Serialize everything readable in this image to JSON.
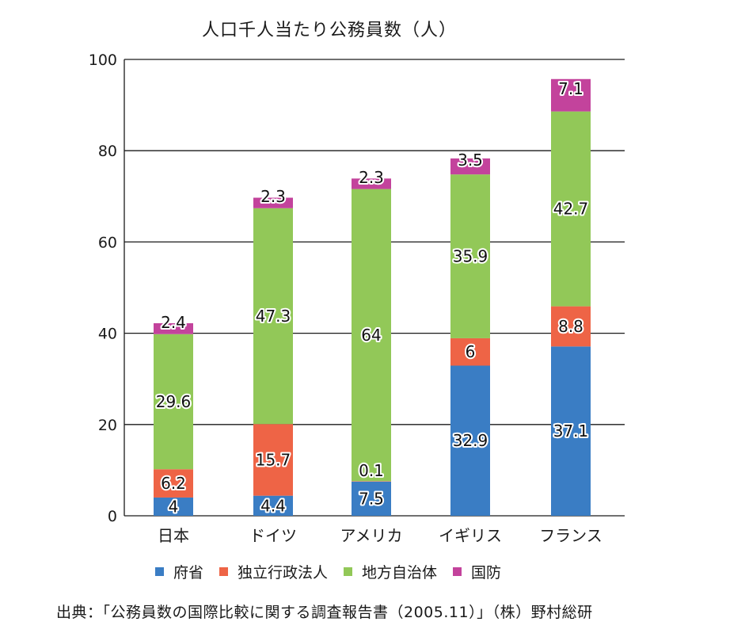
{
  "chart_data": {
    "type": "bar",
    "stacked": true,
    "title": "人口千人当たり公務員数（人）",
    "categories": [
      "日本",
      "ドイツ",
      "アメリカ",
      "イギリス",
      "フランス"
    ],
    "series": [
      {
        "name": "府省",
        "color": "#3a7dc4",
        "values": [
          4,
          4.4,
          7.5,
          32.9,
          37.1
        ],
        "labels": [
          "4",
          "4.4",
          "7.5",
          "32.9",
          "37.1"
        ]
      },
      {
        "name": "独立行政法人",
        "color": "#ee6446",
        "values": [
          6.2,
          15.7,
          0.1,
          6,
          8.8
        ],
        "labels": [
          "6.2",
          "15.7",
          "0.1",
          "6",
          "8.8"
        ]
      },
      {
        "name": "地方自治体",
        "color": "#92c858",
        "values": [
          29.6,
          47.3,
          64,
          35.9,
          42.7
        ],
        "labels": [
          "29.6",
          "47.3",
          "64",
          "35.9",
          "42.7"
        ]
      },
      {
        "name": "国防",
        "color": "#c3439c",
        "values": [
          2.4,
          2.3,
          2.3,
          3.5,
          7.1
        ],
        "labels": [
          "2.4",
          "2.3",
          "2.3",
          "3.5",
          "7.1"
        ]
      }
    ],
    "ylim": [
      0,
      100
    ],
    "yticks": [
      "0",
      "20",
      "40",
      "60",
      "80",
      "100"
    ],
    "xlabel": "",
    "ylabel": "",
    "grid": true,
    "legend": "bottom"
  },
  "legend": [
    {
      "label": "府省",
      "color": "#3a7dc4"
    },
    {
      "label": "独立行政法人",
      "color": "#ee6446"
    },
    {
      "label": "地方自治体",
      "color": "#92c858"
    },
    {
      "label": "国防",
      "color": "#c3439c"
    }
  ],
  "source": "出典：「公務員数の国際比較に関する調査報告書（2005.11）」（株）野村総研"
}
